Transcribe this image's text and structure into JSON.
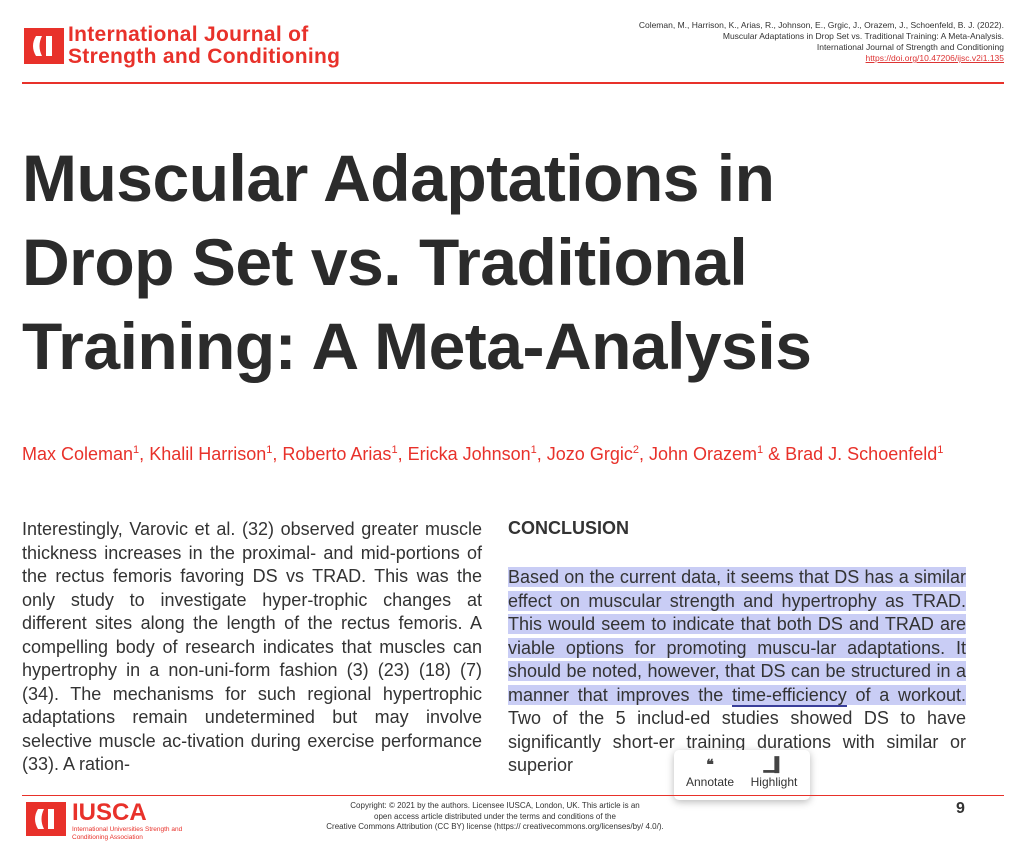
{
  "header": {
    "journal_line1": "International Journal of",
    "journal_line2": "Strength and Conditioning",
    "citation": [
      "Coleman, M., Harrison, K., Arias, R., Johnson, E., Grgic, J., Orazem, J., Schoenfeld, B. J. (2022).",
      "Muscular Adaptations in Drop Set vs. Traditional Training: A Meta-Analysis.",
      "International Journal of Strength and Conditioning",
      "https://doi.org/10.47206/ijsc.v2i1.135"
    ]
  },
  "title": {
    "line1": "Muscular Adaptations in",
    "line2": "Drop Set vs. Traditional",
    "line3": "Training: A Meta-Analysis"
  },
  "authors": [
    {
      "name": "Max Coleman",
      "aff": "1"
    },
    {
      "name": "Khalil Harrison",
      "aff": "1"
    },
    {
      "name": "Roberto Arias",
      "aff": "1"
    },
    {
      "name": "Ericka Johnson",
      "aff": "1"
    },
    {
      "name": "Jozo Grgic",
      "aff": "2"
    },
    {
      "name": "John Orazem",
      "aff": "1"
    },
    {
      "name": "Brad J. Schoenfeld",
      "aff": "1"
    }
  ],
  "authors_sep": ", ",
  "authors_last_sep": " & ",
  "left_column": "Interestingly, Varovic et al. (32) observed greater muscle thickness increases in the proximal- and mid-portions of the rectus femoris favoring DS vs TRAD. This was the only study to investigate hyper-trophic changes at different sites along the length of the rectus femoris. A compelling body of research indicates that muscles can hypertrophy in a non-uni-form fashion (3) (23) (18) (7) (34). The mechanisms for such regional hypertrophic adaptations remain undetermined but may involve selective muscle ac-tivation during exercise performance (33). A ration-",
  "conclusion": {
    "heading": "CONCLUSION",
    "highlight_a": "Based on the current data, it seems that DS has a similar effect on muscular strength and hypertrophy as TRAD. This would seem to indicate that both DS and TRAD are viable options for promoting muscu-lar adaptations. It should be noted, however, that DS can be structured in a manner that improves the ",
    "highlight_underlined": "time-efficiency",
    "highlight_b": " of a workout.",
    "rest": " Two of the 5 includ-ed studies showed DS to have significantly short-er training durations with similar or superior"
  },
  "popup": {
    "annotate_label": "Annotate",
    "annotate_icon": "quote-icon",
    "highlight_label": "Highlight",
    "highlight_icon": "highlighter-icon"
  },
  "footer": {
    "org": "IUSCA",
    "org_full": "International Universities Strength and Conditioning Association",
    "copyright_line1": "Copyright: © 2021 by the authors. Licensee IUSCA, London, UK. This article is an",
    "copyright_line2": "open access article distributed under the terms and conditions of the",
    "copyright_line3": "Creative Commons Attribution (CC BY) license (https:// creativecommons.org/licenses/by/ 4.0/).",
    "page_number": "9"
  },
  "colors": {
    "brand_red": "#e8312a",
    "highlight": "#c9cdf5",
    "text": "#333333"
  }
}
